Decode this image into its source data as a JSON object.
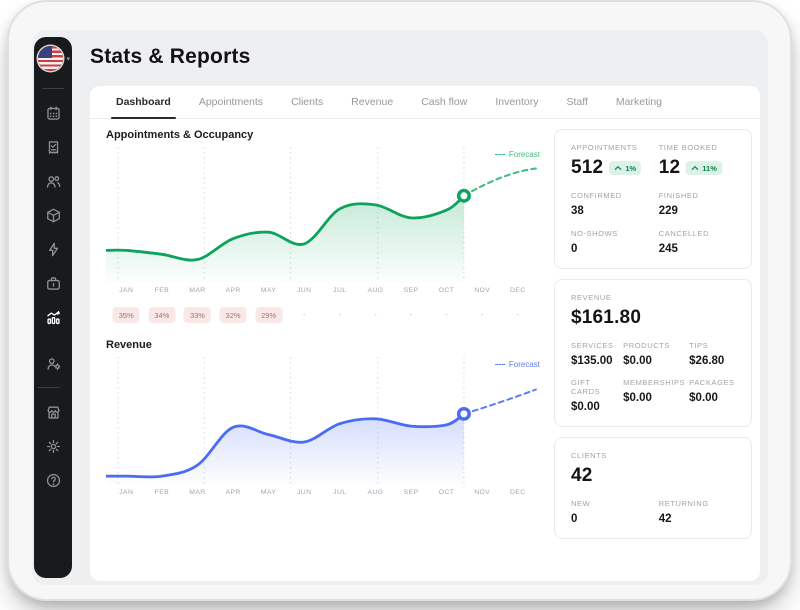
{
  "app": {
    "title": "Stats & Reports"
  },
  "sidebar": {
    "active": "stats",
    "items": [
      "calendar",
      "sales-receipt",
      "clients",
      "inventory",
      "quick-actions",
      "checkout",
      "stats",
      "staff",
      "store",
      "settings",
      "help"
    ]
  },
  "tabs": {
    "active": "Dashboard",
    "items": [
      "Dashboard",
      "Appointments",
      "Clients",
      "Revenue",
      "Cash flow",
      "Inventory",
      "Staff",
      "Marketing"
    ]
  },
  "chart_data": [
    {
      "id": "appointments-occupancy",
      "type": "area",
      "title": "Appointments & Occupancy",
      "legend": "Forecast",
      "x_labels": [
        "JAN",
        "FEB",
        "MAR",
        "APR",
        "MAY",
        "JUN",
        "JUL",
        "AUG",
        "SEP",
        "OCT",
        "NOV",
        "DEC"
      ],
      "scale_note": "no y-axis shown; values estimated as percent of plot height",
      "actual": [
        22,
        19,
        15,
        31,
        36,
        27,
        54,
        57,
        47,
        53
      ],
      "actual_range": "JAN-OCT",
      "current_point": 64,
      "forecast": [
        64,
        85
      ],
      "occupancy_badges": [
        "35%",
        "34%",
        "33%",
        "32%",
        "29%",
        "-",
        "-",
        "-",
        "-",
        "-",
        "-",
        "-"
      ],
      "line_color": "#0da35c",
      "legend_color": "#3fbc81",
      "grid": "vertical dotted",
      "legend_position": "top-right"
    },
    {
      "id": "revenue",
      "type": "area",
      "title": "Revenue",
      "legend": "Forecast",
      "x_labels": [
        "JAN",
        "FEB",
        "MAR",
        "APR",
        "MAY",
        "JUN",
        "JUL",
        "AUG",
        "SEP",
        "OCT",
        "NOV",
        "DEC"
      ],
      "scale_note": "no y-axis shown; values estimated as percent of plot height",
      "actual": [
        4,
        4,
        13,
        44,
        38,
        32,
        47,
        51,
        45,
        46
      ],
      "actual_range": "JAN-OCT",
      "current_point": 55,
      "forecast": [
        55,
        75
      ],
      "line_color": "#4b6bf2",
      "legend_color": "#5d7cf5",
      "grid": "vertical dotted",
      "legend_position": "top-right"
    }
  ],
  "cards": {
    "appointments": {
      "hero": [
        {
          "label": "APPOINTMENTS",
          "value": "512",
          "delta": "1%",
          "direction": "up"
        },
        {
          "label": "TIME BOOKED",
          "value": "12",
          "delta": "11%",
          "direction": "up"
        }
      ],
      "details": [
        {
          "label": "CONFIRMED",
          "value": "38"
        },
        {
          "label": "FINISHED",
          "value": "229"
        },
        {
          "label": "NO-SHOWS",
          "value": "0"
        },
        {
          "label": "CANCELLED",
          "value": "245"
        }
      ]
    },
    "revenue": {
      "label": "REVENUE",
      "total": "$161.80",
      "breakdown": [
        {
          "label": "SERVICES",
          "value": "$135.00"
        },
        {
          "label": "PRODUCTS",
          "value": "$0.00"
        },
        {
          "label": "TIPS",
          "value": "$26.80"
        },
        {
          "label": "GIFT CARDS",
          "value": "$0.00"
        },
        {
          "label": "MEMBERSHIPS",
          "value": "$0.00"
        },
        {
          "label": "PACKAGES",
          "value": "$0.00"
        }
      ]
    },
    "clients": {
      "label": "CLIENTS",
      "total": "42",
      "breakdown": [
        {
          "label": "NEW",
          "value": "0"
        },
        {
          "label": "RETURNING",
          "value": "42"
        }
      ]
    }
  },
  "colors": {
    "badge_pink_bg": "#f9e8e8",
    "badge_pink_text": "#a86e6e",
    "delta_green_bg": "#ddf2e7",
    "delta_green_text": "#14824f",
    "sidebar_bg": "#191a1b",
    "screen_bg": "#eeeff0"
  }
}
